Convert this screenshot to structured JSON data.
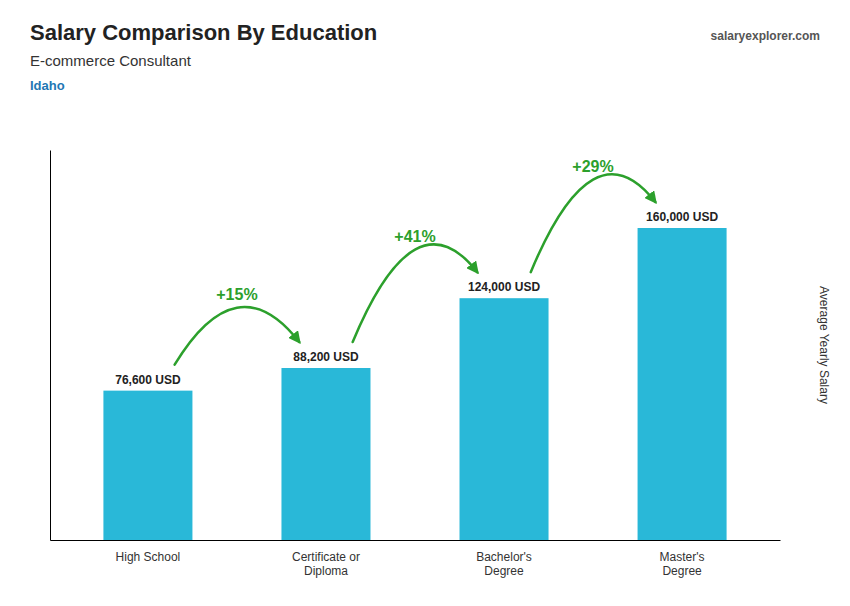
{
  "chart_data": {
    "type": "bar",
    "title": "Salary Comparison By Education",
    "subtitle": "E-commerce Consultant",
    "ylabel": "Average Yearly Salary",
    "categories": [
      "High School",
      "Certificate or\nDiploma",
      "Bachelor's\nDegree",
      "Master's\nDegree"
    ],
    "values": [
      76600,
      88200,
      124000,
      160000
    ],
    "value_labels": [
      "76,600 USD",
      "88,200 USD",
      "124,000 USD",
      "160,000 USD"
    ],
    "color": "#29b8d8",
    "ylim": [
      0,
      200000
    ],
    "grid": false,
    "tick_labels": "x",
    "data_labels": true,
    "annotations": [
      {
        "text": "Idaho"
      },
      {
        "text": "salaryexplorer.com"
      },
      {
        "text": "+15%",
        "from": 0,
        "to": 1
      },
      {
        "text": "+41%",
        "from": 1,
        "to": 2
      },
      {
        "text": "+29%",
        "from": 2,
        "to": 3
      }
    ]
  }
}
